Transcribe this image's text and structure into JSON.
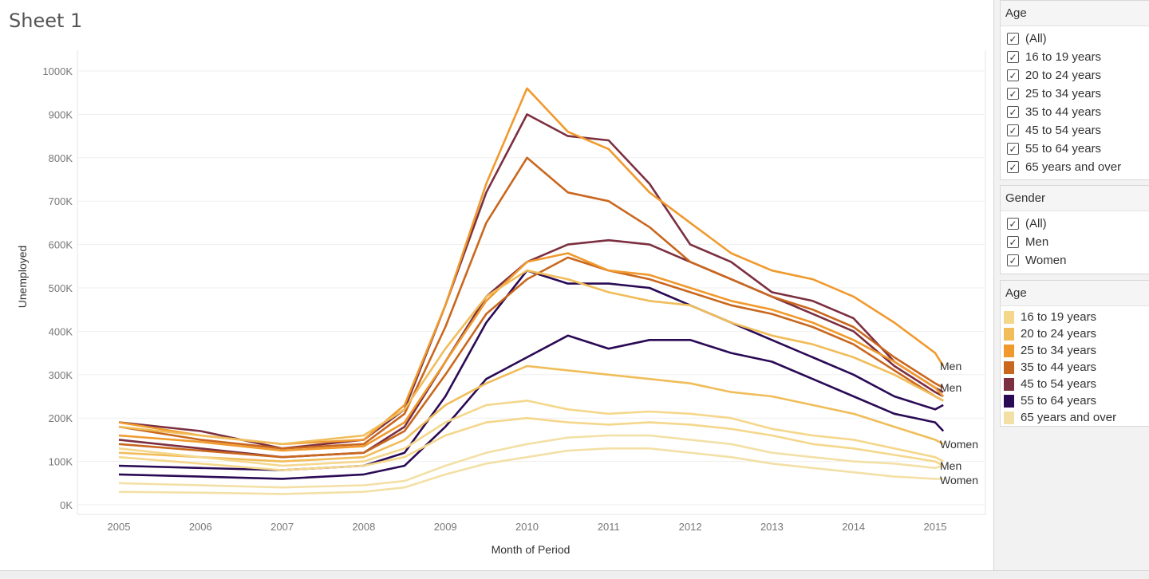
{
  "sheet_title": "Sheet 1",
  "filters": [
    {
      "title": "Age",
      "items": [
        {
          "label": "(All)",
          "checked": true
        },
        {
          "label": "16 to 19 years",
          "checked": true
        },
        {
          "label": "20 to 24 years",
          "checked": true
        },
        {
          "label": "25 to 34 years",
          "checked": true
        },
        {
          "label": "35 to 44 years",
          "checked": true
        },
        {
          "label": "45 to 54 years",
          "checked": true
        },
        {
          "label": "55 to 64 years",
          "checked": true
        },
        {
          "label": "65 years and over",
          "checked": true
        }
      ]
    },
    {
      "title": "Gender",
      "items": [
        {
          "label": "(All)",
          "checked": true
        },
        {
          "label": "Men",
          "checked": true
        },
        {
          "label": "Women",
          "checked": true
        }
      ]
    }
  ],
  "legend": {
    "title": "Age",
    "items": [
      {
        "label": "16 to 19 years",
        "color": "#f5d78c"
      },
      {
        "label": "20 to 24 years",
        "color": "#f0bd5a"
      },
      {
        "label": "25 to 34 years",
        "color": "#f09a2e"
      },
      {
        "label": "35 to 44 years",
        "color": "#c9671e"
      },
      {
        "label": "45 to 54 years",
        "color": "#7b2f40"
      },
      {
        "label": "55 to 64 years",
        "color": "#2a0a55"
      },
      {
        "label": "65 years and over",
        "color": "#f3e0a6"
      }
    ]
  },
  "chart_data": {
    "type": "line",
    "xlabel": "Month of Period",
    "ylabel": "Unemployed",
    "xlim": [
      2005,
      2015.25
    ],
    "ylim": [
      0,
      1000000
    ],
    "x_ticks": [
      {
        "value": 2005,
        "label": "2005"
      },
      {
        "value": 2006,
        "label": "2006"
      },
      {
        "value": 2007,
        "label": "2007"
      },
      {
        "value": 2008,
        "label": "2008"
      },
      {
        "value": 2009,
        "label": "2009"
      },
      {
        "value": 2010,
        "label": "2010"
      },
      {
        "value": 2011,
        "label": "2011"
      },
      {
        "value": 2012,
        "label": "2012"
      },
      {
        "value": 2013,
        "label": "2013"
      },
      {
        "value": 2014,
        "label": "2014"
      },
      {
        "value": 2015,
        "label": "2015"
      }
    ],
    "y_ticks": [
      {
        "value": 0,
        "label": "0K"
      },
      {
        "value": 100000,
        "label": "100K"
      },
      {
        "value": 200000,
        "label": "200K"
      },
      {
        "value": 300000,
        "label": "300K"
      },
      {
        "value": 400000,
        "label": "400K"
      },
      {
        "value": 500000,
        "label": "500K"
      },
      {
        "value": 600000,
        "label": "600K"
      },
      {
        "value": 700000,
        "label": "700K"
      },
      {
        "value": 800000,
        "label": "800K"
      },
      {
        "value": 900000,
        "label": "900K"
      },
      {
        "value": 1000000,
        "label": "1000K"
      }
    ],
    "grid": "horizontal",
    "series": [
      {
        "age": "16 to 19 years",
        "gender": "Men",
        "color": "#f5d78c",
        "end_label": "",
        "x": [
          2005,
          2006,
          2007,
          2008,
          2008.5,
          2009,
          2009.5,
          2010,
          2010.5,
          2011,
          2011.5,
          2012,
          2012.5,
          2013,
          2013.5,
          2014,
          2014.5,
          2015,
          2015.1
        ],
        "y": [
          130000,
          110000,
          90000,
          100000,
          130000,
          190000,
          230000,
          240000,
          220000,
          210000,
          215000,
          210000,
          200000,
          175000,
          160000,
          150000,
          130000,
          110000,
          100000
        ]
      },
      {
        "age": "16 to 19 years",
        "gender": "Women",
        "color": "#f5d78c",
        "end_label": "",
        "x": [
          2005,
          2006,
          2007,
          2008,
          2008.5,
          2009,
          2009.5,
          2010,
          2010.5,
          2011,
          2011.5,
          2012,
          2012.5,
          2013,
          2013.5,
          2014,
          2014.5,
          2015,
          2015.1
        ],
        "y": [
          110000,
          95000,
          80000,
          90000,
          110000,
          160000,
          190000,
          200000,
          190000,
          185000,
          190000,
          185000,
          175000,
          160000,
          140000,
          130000,
          115000,
          100000,
          90000
        ]
      },
      {
        "age": "20 to 24 years",
        "gender": "Men",
        "color": "#f0bd5a",
        "end_label": "",
        "x": [
          2005,
          2006,
          2007,
          2008,
          2008.5,
          2009,
          2009.5,
          2010,
          2010.5,
          2011,
          2011.5,
          2012,
          2012.5,
          2013,
          2013.5,
          2014,
          2014.5,
          2015,
          2015.1
        ],
        "y": [
          180000,
          160000,
          140000,
          160000,
          220000,
          360000,
          480000,
          540000,
          520000,
          490000,
          470000,
          460000,
          420000,
          390000,
          370000,
          340000,
          300000,
          250000,
          240000
        ]
      },
      {
        "age": "20 to 24 years",
        "gender": "Women",
        "color": "#f0bd5a",
        "end_label": "Women",
        "x": [
          2005,
          2006,
          2007,
          2008,
          2008.5,
          2009,
          2009.5,
          2010,
          2010.5,
          2011,
          2011.5,
          2012,
          2012.5,
          2013,
          2013.5,
          2014,
          2014.5,
          2015,
          2015.1
        ],
        "y": [
          120000,
          110000,
          100000,
          110000,
          150000,
          230000,
          280000,
          320000,
          310000,
          300000,
          290000,
          280000,
          260000,
          250000,
          230000,
          210000,
          180000,
          150000,
          140000
        ]
      },
      {
        "age": "25 to 34 years",
        "gender": "Men",
        "color": "#f09a2e",
        "end_label": "Men",
        "x": [
          2005,
          2006,
          2007,
          2008,
          2008.5,
          2009,
          2009.5,
          2010,
          2010.5,
          2011,
          2011.5,
          2012,
          2012.5,
          2013,
          2013.5,
          2014,
          2014.5,
          2015,
          2015.1
        ],
        "y": [
          190000,
          160000,
          140000,
          150000,
          230000,
          460000,
          740000,
          960000,
          860000,
          820000,
          720000,
          650000,
          580000,
          540000,
          520000,
          480000,
          420000,
          350000,
          320000
        ]
      },
      {
        "age": "25 to 34 years",
        "gender": "Women",
        "color": "#f09a2e",
        "end_label": "",
        "x": [
          2005,
          2006,
          2007,
          2008,
          2008.5,
          2009,
          2009.5,
          2010,
          2010.5,
          2011,
          2011.5,
          2012,
          2012.5,
          2013,
          2013.5,
          2014,
          2014.5,
          2015,
          2015.1
        ],
        "y": [
          160000,
          145000,
          125000,
          135000,
          190000,
          330000,
          470000,
          560000,
          580000,
          540000,
          530000,
          500000,
          470000,
          450000,
          420000,
          380000,
          330000,
          270000,
          250000
        ]
      },
      {
        "age": "35 to 44 years",
        "gender": "Men",
        "color": "#c9671e",
        "end_label": "Men",
        "x": [
          2005,
          2006,
          2007,
          2008,
          2008.5,
          2009,
          2009.5,
          2010,
          2010.5,
          2011,
          2011.5,
          2012,
          2012.5,
          2013,
          2013.5,
          2014,
          2014.5,
          2015,
          2015.1
        ],
        "y": [
          180000,
          150000,
          130000,
          140000,
          210000,
          410000,
          650000,
          800000,
          720000,
          700000,
          640000,
          560000,
          520000,
          480000,
          450000,
          410000,
          340000,
          280000,
          270000
        ]
      },
      {
        "age": "35 to 44 years",
        "gender": "Women",
        "color": "#c9671e",
        "end_label": "",
        "x": [
          2005,
          2006,
          2007,
          2008,
          2008.5,
          2009,
          2009.5,
          2010,
          2010.5,
          2011,
          2011.5,
          2012,
          2012.5,
          2013,
          2013.5,
          2014,
          2014.5,
          2015,
          2015.1
        ],
        "y": [
          140000,
          125000,
          110000,
          120000,
          170000,
          300000,
          440000,
          520000,
          570000,
          540000,
          520000,
          490000,
          460000,
          440000,
          410000,
          370000,
          310000,
          250000,
          240000
        ]
      },
      {
        "age": "45 to 54 years",
        "gender": "Men",
        "color": "#7b2f40",
        "end_label": "",
        "x": [
          2005,
          2006,
          2007,
          2008,
          2008.5,
          2009,
          2009.5,
          2010,
          2010.5,
          2011,
          2011.5,
          2012,
          2012.5,
          2013,
          2013.5,
          2014,
          2014.5,
          2015,
          2015.1
        ],
        "y": [
          190000,
          170000,
          130000,
          150000,
          220000,
          460000,
          720000,
          900000,
          850000,
          840000,
          740000,
          600000,
          560000,
          490000,
          470000,
          430000,
          330000,
          270000,
          260000
        ]
      },
      {
        "age": "45 to 54 years",
        "gender": "Women",
        "color": "#7b2f40",
        "end_label": "",
        "x": [
          2005,
          2006,
          2007,
          2008,
          2008.5,
          2009,
          2009.5,
          2010,
          2010.5,
          2011,
          2011.5,
          2012,
          2012.5,
          2013,
          2013.5,
          2014,
          2014.5,
          2015,
          2015.1
        ],
        "y": [
          150000,
          130000,
          110000,
          120000,
          180000,
          330000,
          480000,
          560000,
          600000,
          610000,
          600000,
          560000,
          520000,
          480000,
          440000,
          400000,
          320000,
          260000,
          250000
        ]
      },
      {
        "age": "55 to 64 years",
        "gender": "Men",
        "color": "#2a0a55",
        "end_label": "",
        "x": [
          2005,
          2006,
          2007,
          2008,
          2008.5,
          2009,
          2009.5,
          2010,
          2010.5,
          2011,
          2011.5,
          2012,
          2012.5,
          2013,
          2013.5,
          2014,
          2014.5,
          2015,
          2015.1
        ],
        "y": [
          90000,
          85000,
          80000,
          90000,
          120000,
          250000,
          420000,
          540000,
          510000,
          510000,
          500000,
          460000,
          420000,
          380000,
          340000,
          300000,
          250000,
          220000,
          230000
        ]
      },
      {
        "age": "55 to 64 years",
        "gender": "Women",
        "color": "#2a0a55",
        "end_label": "",
        "x": [
          2005,
          2006,
          2007,
          2008,
          2008.5,
          2009,
          2009.5,
          2010,
          2010.5,
          2011,
          2011.5,
          2012,
          2012.5,
          2013,
          2013.5,
          2014,
          2014.5,
          2015,
          2015.1
        ],
        "y": [
          70000,
          65000,
          60000,
          70000,
          90000,
          180000,
          290000,
          340000,
          390000,
          360000,
          380000,
          380000,
          350000,
          330000,
          290000,
          250000,
          210000,
          190000,
          170000
        ]
      },
      {
        "age": "65 years and over",
        "gender": "Men",
        "color": "#f3e0a6",
        "end_label": "Men",
        "x": [
          2005,
          2006,
          2007,
          2008,
          2008.5,
          2009,
          2009.5,
          2010,
          2010.5,
          2011,
          2011.5,
          2012,
          2012.5,
          2013,
          2013.5,
          2014,
          2014.5,
          2015,
          2015.1
        ],
        "y": [
          50000,
          45000,
          40000,
          45000,
          55000,
          90000,
          120000,
          140000,
          155000,
          160000,
          160000,
          150000,
          140000,
          120000,
          110000,
          100000,
          95000,
          85000,
          90000
        ]
      },
      {
        "age": "65 years and over",
        "gender": "Women",
        "color": "#f3e0a6",
        "end_label": "Women",
        "x": [
          2005,
          2006,
          2007,
          2008,
          2008.5,
          2009,
          2009.5,
          2010,
          2010.5,
          2011,
          2011.5,
          2012,
          2012.5,
          2013,
          2013.5,
          2014,
          2014.5,
          2015,
          2015.1
        ],
        "y": [
          30000,
          28000,
          25000,
          30000,
          40000,
          70000,
          95000,
          110000,
          125000,
          130000,
          130000,
          120000,
          110000,
          95000,
          85000,
          75000,
          65000,
          60000,
          60000
        ]
      }
    ]
  }
}
